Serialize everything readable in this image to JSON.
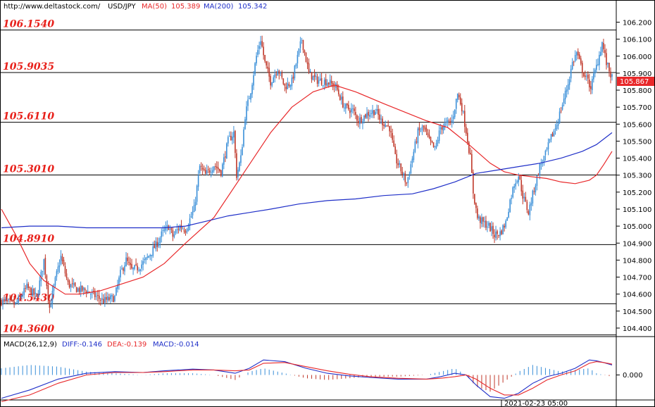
{
  "header": {
    "url": "http://www.deltastock.com/",
    "symbol": "USD/JPY",
    "ma50_label": "MA(50)",
    "ma50_value": "105.389",
    "ma200_label": "MA(200)",
    "ma200_value": "105.342"
  },
  "macd_header": {
    "title": "MACD(26,12,9)",
    "diff": "DIFF:-0.146",
    "dea": "DEA:-0.139",
    "macd": "MACD:-0.014"
  },
  "colors": {
    "up": "#3a8fd8",
    "down": "#c0392b",
    "ma50": "#e8282a",
    "ma200": "#1f2fc8",
    "level_text": "#e8201a"
  },
  "chart_data": [
    {
      "type": "candlestick",
      "symbol": "USD/JPY",
      "ylim": [
        104.35,
        106.26
      ],
      "yticks": [
        "106.200",
        "106.100",
        "106.000",
        "105.900",
        "105.800",
        "105.700",
        "105.600",
        "105.500",
        "105.400",
        "105.300",
        "105.200",
        "105.100",
        "105.000",
        "104.900",
        "104.800",
        "104.700",
        "104.600",
        "104.500",
        "104.400"
      ],
      "current_price": "105.867",
      "levels": [
        "106.1540",
        "105.9035",
        "105.6110",
        "105.3010",
        "104.8910",
        "104.5430",
        "104.3600"
      ],
      "x_label": "2021-02-23 05:00",
      "close_path": [
        [
          0,
          104.56
        ],
        [
          10,
          104.54
        ],
        [
          18,
          104.64
        ],
        [
          25,
          104.58
        ],
        [
          30,
          104.8
        ],
        [
          34,
          104.52
        ],
        [
          38,
          104.68
        ],
        [
          42,
          104.82
        ],
        [
          47,
          104.66
        ],
        [
          53,
          104.63
        ],
        [
          60,
          104.62
        ],
        [
          66,
          104.59
        ],
        [
          72,
          104.56
        ],
        [
          80,
          104.58
        ],
        [
          84,
          104.72
        ],
        [
          88,
          104.8
        ],
        [
          92,
          104.74
        ],
        [
          97,
          104.76
        ],
        [
          102,
          104.8
        ],
        [
          106,
          104.85
        ],
        [
          110,
          104.9
        ],
        [
          113,
          104.95
        ],
        [
          118,
          105.0
        ],
        [
          121,
          104.94
        ],
        [
          126,
          105.0
        ],
        [
          130,
          104.98
        ],
        [
          136,
          105.1
        ],
        [
          140,
          105.35
        ],
        [
          144,
          105.3
        ],
        [
          150,
          105.36
        ],
        [
          155,
          105.32
        ],
        [
          160,
          105.5
        ],
        [
          164,
          105.55
        ],
        [
          166,
          105.3
        ],
        [
          169,
          105.4
        ],
        [
          172,
          105.65
        ],
        [
          176,
          105.8
        ],
        [
          180,
          106.0
        ],
        [
          183,
          106.1
        ],
        [
          186,
          105.96
        ],
        [
          190,
          105.85
        ],
        [
          195,
          105.93
        ],
        [
          200,
          105.82
        ],
        [
          205,
          105.85
        ],
        [
          212,
          106.1
        ],
        [
          217,
          105.9
        ],
        [
          222,
          105.86
        ],
        [
          230,
          105.85
        ],
        [
          236,
          105.82
        ],
        [
          242,
          105.7
        ],
        [
          248,
          105.68
        ],
        [
          252,
          105.62
        ],
        [
          258,
          105.66
        ],
        [
          264,
          105.68
        ],
        [
          268,
          105.62
        ],
        [
          274,
          105.58
        ],
        [
          278,
          105.4
        ],
        [
          282,
          105.33
        ],
        [
          286,
          105.25
        ],
        [
          290,
          105.4
        ],
        [
          294,
          105.55
        ],
        [
          298,
          105.58
        ],
        [
          302,
          105.5
        ],
        [
          306,
          105.45
        ],
        [
          310,
          105.58
        ],
        [
          314,
          105.6
        ],
        [
          318,
          105.62
        ],
        [
          322,
          105.78
        ],
        [
          325,
          105.7
        ],
        [
          328,
          105.56
        ],
        [
          331,
          105.4
        ],
        [
          333,
          105.2
        ],
        [
          336,
          105.05
        ],
        [
          340,
          105.02
        ],
        [
          344,
          105.0
        ],
        [
          348,
          104.95
        ],
        [
          352,
          104.96
        ],
        [
          356,
          105.02
        ],
        [
          359,
          105.15
        ],
        [
          362,
          105.25
        ],
        [
          365,
          105.3
        ],
        [
          368,
          105.18
        ],
        [
          372,
          105.08
        ],
        [
          376,
          105.22
        ],
        [
          380,
          105.35
        ],
        [
          384,
          105.42
        ],
        [
          388,
          105.52
        ],
        [
          392,
          105.6
        ],
        [
          396,
          105.72
        ],
        [
          400,
          105.84
        ],
        [
          403,
          105.96
        ],
        [
          406,
          106.02
        ],
        [
          409,
          105.94
        ],
        [
          412,
          105.88
        ],
        [
          416,
          105.82
        ],
        [
          420,
          105.94
        ],
        [
          424,
          106.08
        ],
        [
          427,
          105.96
        ],
        [
          431,
          105.87
        ]
      ]
    },
    {
      "type": "line",
      "name": "MA(50)",
      "x": [
        0,
        10,
        20,
        30,
        45,
        55,
        70,
        85,
        100,
        115,
        130,
        150,
        170,
        190,
        205,
        220,
        235,
        250,
        270,
        285,
        300,
        315,
        330,
        345,
        355,
        365,
        375,
        385,
        395,
        405,
        415,
        420,
        425,
        431
      ],
      "values": [
        105.1,
        104.95,
        104.78,
        104.68,
        104.6,
        104.6,
        104.62,
        104.66,
        104.7,
        104.78,
        104.9,
        105.05,
        105.3,
        105.55,
        105.7,
        105.79,
        105.83,
        105.79,
        105.72,
        105.67,
        105.62,
        105.58,
        105.48,
        105.37,
        105.32,
        105.3,
        105.29,
        105.28,
        105.26,
        105.25,
        105.27,
        105.3,
        105.36,
        105.44
      ]
    },
    {
      "type": "line",
      "name": "MA(200)",
      "x": [
        0,
        20,
        40,
        60,
        80,
        100,
        115,
        130,
        145,
        160,
        175,
        190,
        210,
        230,
        250,
        270,
        290,
        305,
        320,
        335,
        350,
        365,
        380,
        395,
        410,
        420,
        431
      ],
      "values": [
        104.99,
        105.0,
        105.0,
        104.99,
        104.99,
        104.99,
        104.99,
        105.0,
        105.03,
        105.06,
        105.08,
        105.1,
        105.13,
        105.15,
        105.16,
        105.18,
        105.19,
        105.22,
        105.26,
        105.31,
        105.33,
        105.35,
        105.37,
        105.4,
        105.44,
        105.48,
        105.55
      ]
    },
    {
      "type": "bar",
      "name": "MACD",
      "ylim": [
        -0.3,
        0.3
      ],
      "ytick": "0.000",
      "x": [
        0,
        20,
        40,
        60,
        80,
        100,
        115,
        135,
        150,
        165,
        175,
        185,
        200,
        215,
        230,
        245,
        260,
        280,
        300,
        310,
        320,
        328,
        335,
        345,
        355,
        365,
        375,
        385,
        395,
        405,
        415,
        420,
        425,
        431
      ],
      "diff": [
        -0.28,
        -0.18,
        -0.05,
        0.02,
        0.04,
        0.03,
        0.05,
        0.07,
        0.06,
        0.02,
        0.08,
        0.18,
        0.16,
        0.08,
        0.02,
        -0.01,
        -0.03,
        -0.05,
        -0.05,
        -0.02,
        0.02,
        0.0,
        -0.12,
        -0.26,
        -0.28,
        -0.22,
        -0.1,
        -0.02,
        0.02,
        0.08,
        0.18,
        0.17,
        0.15,
        0.12
      ],
      "dea": [
        -0.32,
        -0.24,
        -0.1,
        0.0,
        0.03,
        0.03,
        0.04,
        0.06,
        0.06,
        0.05,
        0.06,
        0.14,
        0.15,
        0.1,
        0.05,
        0.01,
        -0.02,
        -0.04,
        -0.05,
        -0.04,
        -0.02,
        0.0,
        -0.05,
        -0.16,
        -0.24,
        -0.24,
        -0.16,
        -0.06,
        0.0,
        0.05,
        0.14,
        0.16,
        0.15,
        0.13
      ]
    }
  ]
}
